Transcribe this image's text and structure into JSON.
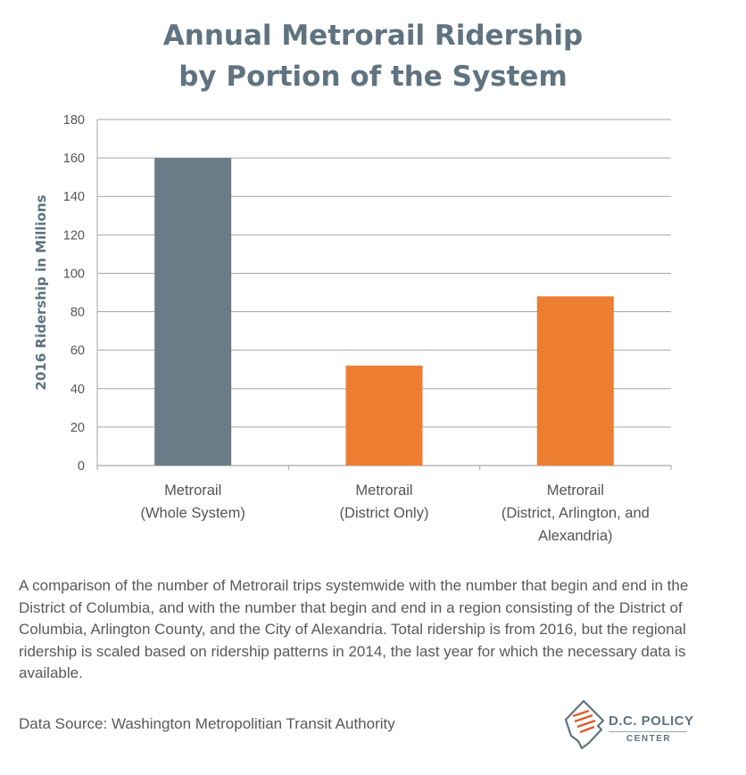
{
  "chart_data": {
    "type": "bar",
    "title_lines": [
      "Annual Metrorail Ridership",
      "by Portion of the System"
    ],
    "ylabel": "2016 Ridership in Millions",
    "xlabel": "",
    "categories": [
      [
        "Metrorail",
        "(Whole System)"
      ],
      [
        "Metrorail",
        "(District Only)"
      ],
      [
        "Metrorail",
        "(District, Arlington, and",
        "Alexandria)"
      ]
    ],
    "values": [
      160,
      52,
      88
    ],
    "bar_colors": [
      "#697c88",
      "#ed7d31",
      "#ed7d31"
    ],
    "ylim": [
      0,
      180
    ],
    "yticks": [
      0,
      20,
      40,
      60,
      80,
      100,
      120,
      140,
      160,
      180
    ],
    "grid": true,
    "legend": "none"
  },
  "caption": "A comparison of the number of Metrorail trips systemwide with the number that begin and end in the District of Columbia, and with the number that begin and end in a region consisting of the District of Columbia, Arlington County, and the City of Alexandria.  Total ridership is from 2016, but the regional ridership is scaled based on ridership patterns in 2014, the last year for which the necessary data is available.",
  "source": "Data Source: Washington Metropolitian Transit Authority",
  "logo": {
    "name": "D.C. POLICY",
    "sub": "CENTER",
    "icon": "dc-policy-center-logo-icon"
  },
  "colors": {
    "title": "#5f7380",
    "text": "#595959",
    "gridline": "#a6a6a6"
  }
}
